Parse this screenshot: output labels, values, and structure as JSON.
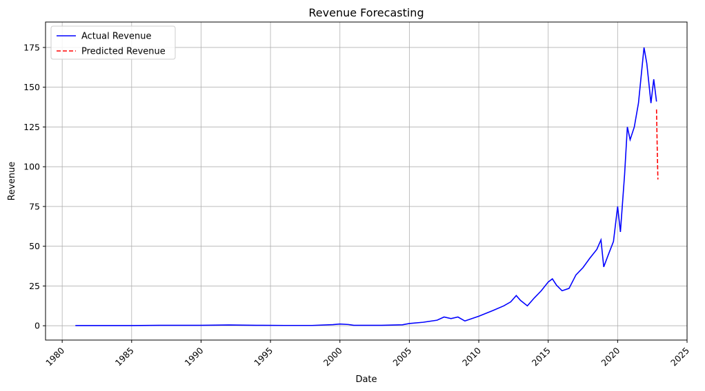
{
  "chart_data": {
    "type": "line",
    "title": "Revenue Forecasting",
    "xlabel": "Date",
    "ylabel": "Revenue",
    "xlim": [
      1978.8,
      2025
    ],
    "ylim": [
      -9,
      191
    ],
    "x_ticks": [
      1980,
      1985,
      1990,
      1995,
      2000,
      2005,
      2010,
      2015,
      2020,
      2025
    ],
    "y_ticks": [
      0,
      25,
      50,
      75,
      100,
      125,
      150,
      175
    ],
    "grid": true,
    "legend_position": "top-left",
    "x_tick_rotation_deg": 45,
    "series": [
      {
        "name": "Actual Revenue",
        "color": "#0000ff",
        "style": "solid",
        "points": [
          [
            1980.95,
            0.1
          ],
          [
            1983,
            0.1
          ],
          [
            1985,
            0.1
          ],
          [
            1987,
            0.3
          ],
          [
            1990,
            0.3
          ],
          [
            1992,
            0.5
          ],
          [
            1994,
            0.3
          ],
          [
            1996,
            0.2
          ],
          [
            1998,
            0.2
          ],
          [
            1999.5,
            0.7
          ],
          [
            2000.0,
            1.1
          ],
          [
            2000.6,
            0.8
          ],
          [
            2001,
            0.3
          ],
          [
            2003,
            0.3
          ],
          [
            2004.5,
            0.6
          ],
          [
            2005,
            1.4
          ],
          [
            2006,
            2.2
          ],
          [
            2007,
            3.5
          ],
          [
            2007.5,
            5.5
          ],
          [
            2008,
            4.5
          ],
          [
            2008.5,
            5.5
          ],
          [
            2009,
            3.0
          ],
          [
            2010,
            6.0
          ],
          [
            2011,
            9.5
          ],
          [
            2011.8,
            12.5
          ],
          [
            2012.3,
            15.0
          ],
          [
            2012.7,
            19.0
          ],
          [
            2013,
            16.0
          ],
          [
            2013.5,
            12.5
          ],
          [
            2014,
            17.5
          ],
          [
            2014.5,
            22.0
          ],
          [
            2015,
            27.5
          ],
          [
            2015.3,
            29.5
          ],
          [
            2015.6,
            25.5
          ],
          [
            2016,
            22.0
          ],
          [
            2016.5,
            23.5
          ],
          [
            2017,
            32.0
          ],
          [
            2017.5,
            36.5
          ],
          [
            2018,
            42.5
          ],
          [
            2018.5,
            48.0
          ],
          [
            2018.8,
            54.0
          ],
          [
            2019,
            37.0
          ],
          [
            2019.3,
            44.0
          ],
          [
            2019.7,
            53.0
          ],
          [
            2020.0,
            75.0
          ],
          [
            2020.2,
            59.0
          ],
          [
            2020.5,
            95.0
          ],
          [
            2020.7,
            125.0
          ],
          [
            2020.9,
            117.0
          ],
          [
            2021.2,
            125.0
          ],
          [
            2021.5,
            140.0
          ],
          [
            2021.9,
            175.0
          ],
          [
            2022.1,
            165.0
          ],
          [
            2022.4,
            140.0
          ],
          [
            2022.6,
            155.0
          ],
          [
            2022.8,
            141.0
          ]
        ]
      },
      {
        "name": "Predicted Revenue",
        "color": "#ff0000",
        "style": "dashed",
        "points": [
          [
            2022.8,
            136.0
          ],
          [
            2022.85,
            112.0
          ],
          [
            2022.9,
            92.0
          ]
        ]
      }
    ]
  }
}
